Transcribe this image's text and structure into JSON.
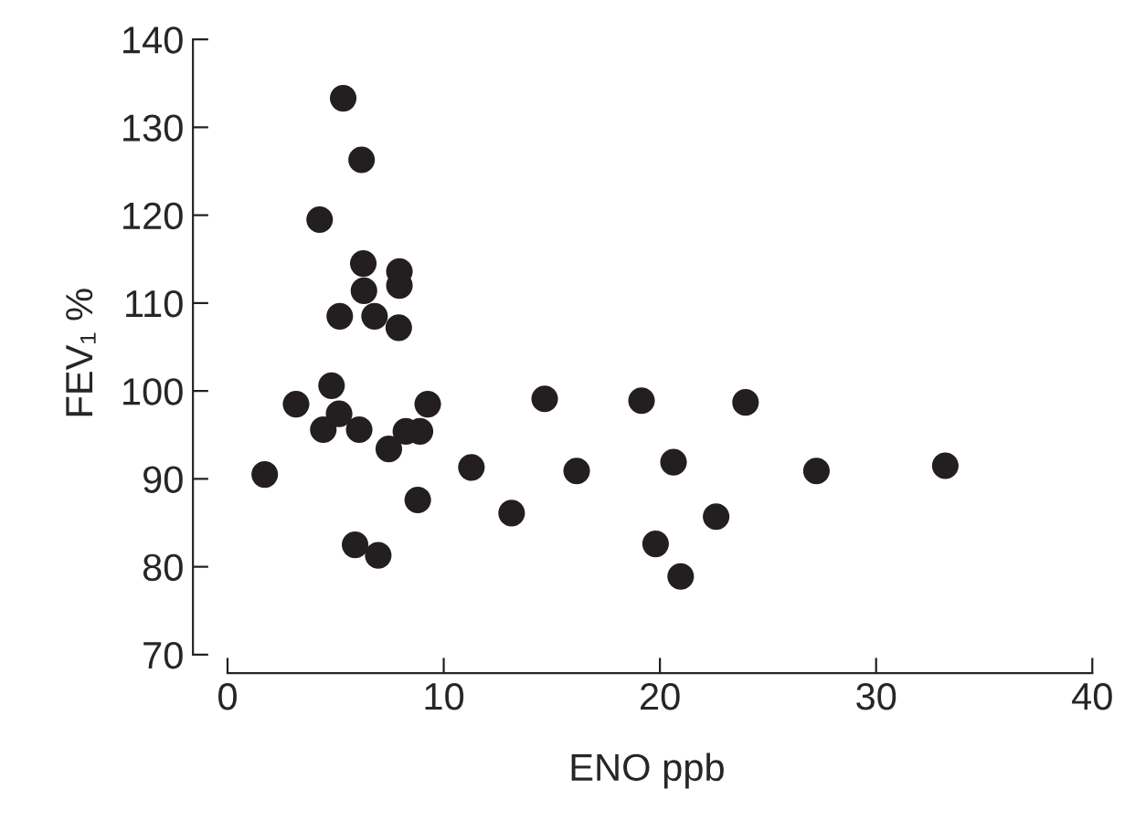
{
  "chart_data": {
    "type": "scatter",
    "xlabel": "ENO ppb",
    "ylabel": "FEV₁ %",
    "x": [
      5.35,
      6.2,
      4.26,
      6.28,
      7.95,
      7.95,
      6.31,
      5.19,
      6.8,
      7.92,
      4.81,
      3.17,
      9.26,
      5.16,
      4.43,
      6.09,
      8.25,
      8.9,
      7.46,
      1.72,
      11.28,
      8.8,
      5.9,
      6.97,
      14.67,
      19.15,
      23.96,
      16.15,
      20.63,
      27.24,
      33.2,
      13.14,
      22.6,
      19.8,
      20.96
    ],
    "series": [
      {
        "color": "#231f20",
        "values": [
          133.3,
          126.3,
          119.5,
          114.5,
          113.6,
          112.0,
          111.4,
          108.5,
          108.5,
          107.2,
          100.6,
          98.5,
          98.5,
          97.4,
          95.6,
          95.6,
          95.4,
          95.4,
          93.4,
          90.5,
          91.3,
          87.6,
          82.5,
          81.3,
          99.1,
          98.9,
          98.7,
          90.9,
          91.9,
          90.9,
          91.5,
          86.1,
          85.7,
          82.6,
          78.9
        ]
      }
    ],
    "xlim": [
      0,
      40
    ],
    "ylim": [
      70,
      140
    ],
    "xticks": [
      0,
      10,
      20,
      30,
      40
    ],
    "yticks": [
      70,
      80,
      90,
      100,
      110,
      120,
      130,
      140
    ],
    "marker": "circle",
    "grid": false,
    "legend": false
  }
}
